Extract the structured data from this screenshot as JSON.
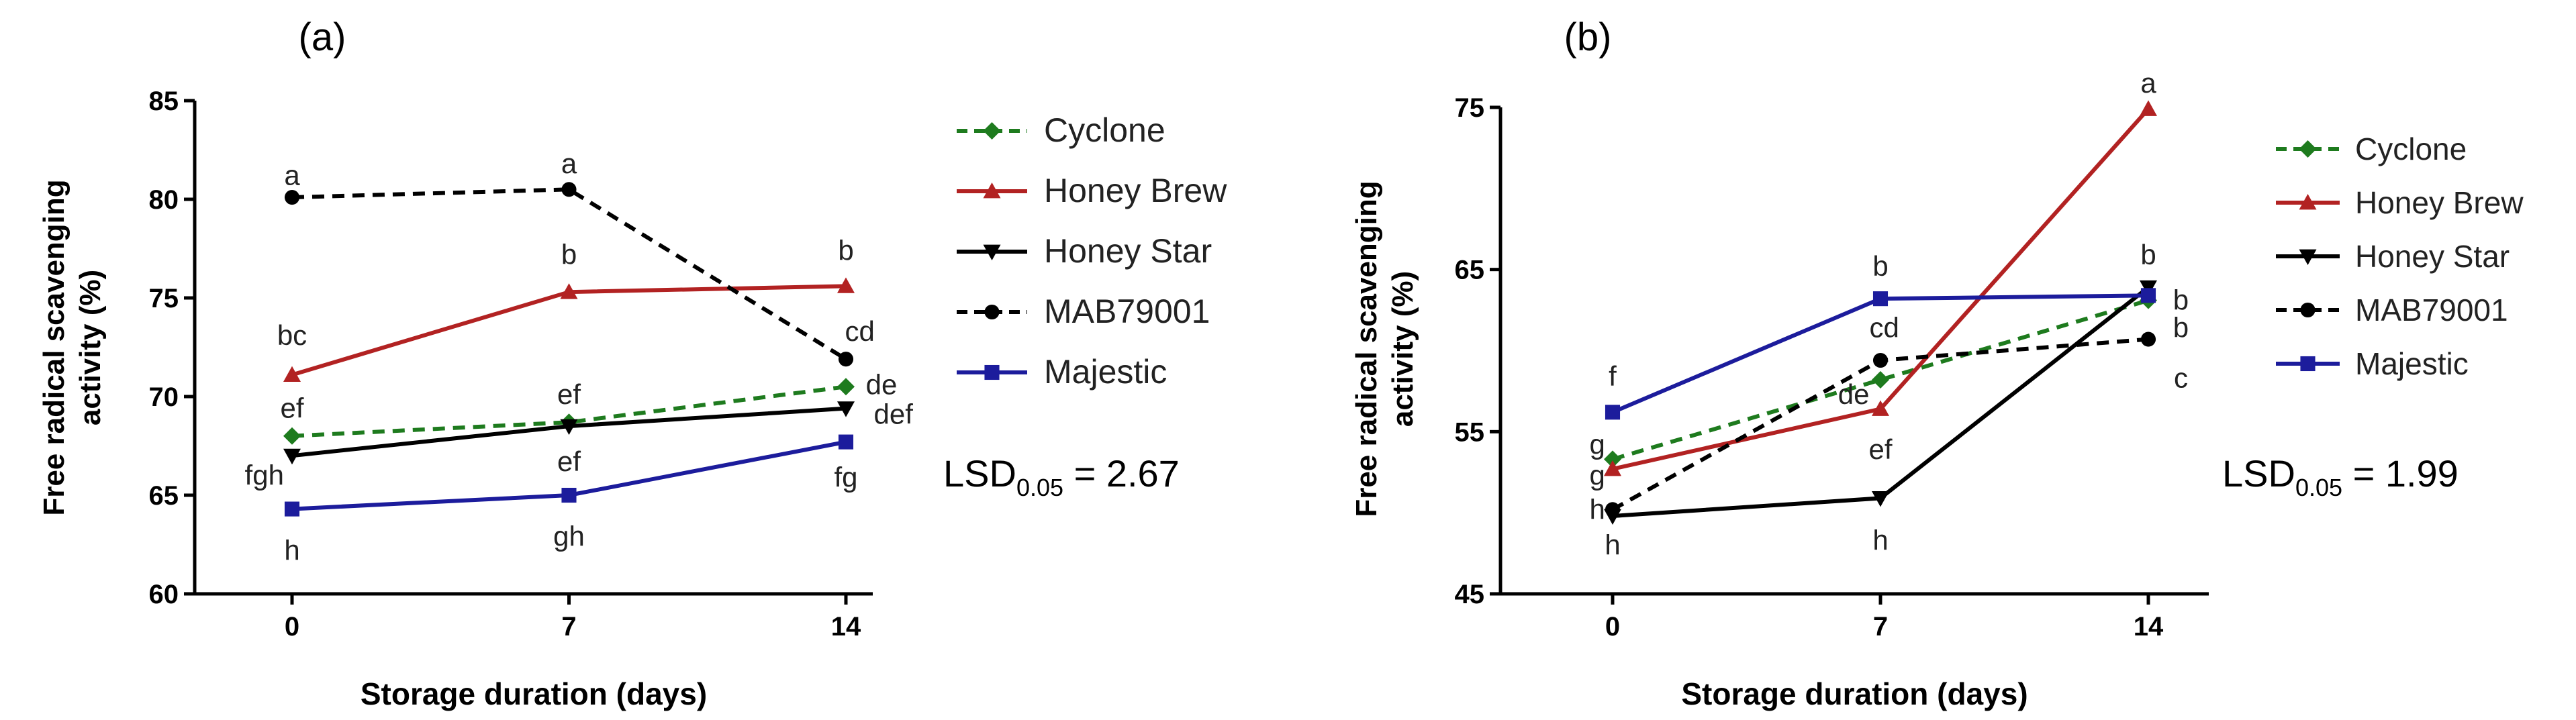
{
  "chart_data": [
    {
      "type": "line",
      "panel_label": "(a)",
      "xlabel": "Storage duration (days)",
      "ylabel": "Free radical scavenging activity (%)",
      "ylabel_lines": [
        "Free radical scavenging",
        "activity (%)"
      ],
      "x": [
        0,
        7,
        14
      ],
      "xticks": [
        "0",
        "7",
        "14"
      ],
      "ylim": [
        60,
        85
      ],
      "yticks": [
        60,
        65,
        70,
        75,
        80,
        85
      ],
      "lsd_prefix": "LSD",
      "lsd_sub": "0.05",
      "lsd_value": " = 2.67",
      "series": [
        {
          "name": "Cyclone",
          "values": [
            68.0,
            68.7,
            70.5
          ],
          "color": "#1e7b1e",
          "dash": "dash",
          "marker": "diamond"
        },
        {
          "name": "Honey Brew",
          "values": [
            71.1,
            75.3,
            75.6
          ],
          "color": "#b22222",
          "dash": "solid",
          "marker": "triangle-up"
        },
        {
          "name": "Honey Star",
          "values": [
            67.0,
            68.5,
            69.4
          ],
          "color": "#000000",
          "dash": "solid",
          "marker": "triangle-down"
        },
        {
          "name": "MAB79001",
          "values": [
            80.1,
            80.5,
            71.9
          ],
          "color": "#000000",
          "dash": "dash",
          "marker": "circle"
        },
        {
          "name": "Majestic",
          "values": [
            64.3,
            65.0,
            67.7
          ],
          "color": "#1c1c9c",
          "dash": "solid",
          "marker": "square"
        }
      ],
      "annotations": [
        {
          "text": "a",
          "x": 0,
          "y": 81.2
        },
        {
          "text": "a",
          "x": 7,
          "y": 81.8
        },
        {
          "text": "bc",
          "x": 0,
          "y": 73.1
        },
        {
          "text": "b",
          "x": 7,
          "y": 77.2
        },
        {
          "text": "b",
          "x": 14,
          "y": 77.4
        },
        {
          "text": "cd",
          "x": 14.35,
          "y": 73.3
        },
        {
          "text": "ef",
          "x": 0,
          "y": 69.4
        },
        {
          "text": "ef",
          "x": 7,
          "y": 70.1
        },
        {
          "text": "de",
          "x": 14.9,
          "y": 70.6
        },
        {
          "text": "def",
          "x": 15.2,
          "y": 69.1
        },
        {
          "text": "ef",
          "x": 7,
          "y": 66.7
        },
        {
          "text": "fgh",
          "x": -0.7,
          "y": 66.0
        },
        {
          "text": "fg",
          "x": 14,
          "y": 65.9
        },
        {
          "text": "gh",
          "x": 7,
          "y": 62.9
        },
        {
          "text": "h",
          "x": 0,
          "y": 62.2
        }
      ]
    },
    {
      "type": "line",
      "panel_label": "(b)",
      "xlabel": "Storage duration (days)",
      "ylabel": "Free radical scavenging activity (%)",
      "ylabel_lines": [
        "Free radical scavenging",
        "activity (%)"
      ],
      "x": [
        0,
        7,
        14
      ],
      "xticks": [
        "0",
        "7",
        "14"
      ],
      "ylim": [
        45,
        75
      ],
      "yticks": [
        45,
        55,
        65,
        75
      ],
      "lsd_prefix": "LSD",
      "lsd_sub": "0.05",
      "lsd_value": " = 1.99",
      "series": [
        {
          "name": "Cyclone",
          "values": [
            53.3,
            58.2,
            63.1
          ],
          "color": "#1e7b1e",
          "dash": "dash",
          "marker": "diamond"
        },
        {
          "name": "Honey Brew",
          "values": [
            52.7,
            56.4,
            74.9
          ],
          "color": "#b22222",
          "dash": "solid",
          "marker": "triangle-up"
        },
        {
          "name": "Honey Star",
          "values": [
            49.8,
            50.9,
            63.9
          ],
          "color": "#000000",
          "dash": "solid",
          "marker": "triangle-down"
        },
        {
          "name": "MAB79001",
          "values": [
            50.2,
            59.4,
            60.7
          ],
          "color": "#000000",
          "dash": "dash",
          "marker": "circle"
        },
        {
          "name": "Majestic",
          "values": [
            56.2,
            63.2,
            63.4
          ],
          "color": "#1c1c9c",
          "dash": "solid",
          "marker": "square"
        }
      ],
      "annotations": [
        {
          "text": "a",
          "x": 14,
          "y": 76.5
        },
        {
          "text": "b",
          "x": 7,
          "y": 65.2
        },
        {
          "text": "b",
          "x": 14,
          "y": 65.9
        },
        {
          "text": "b",
          "x": 14.85,
          "y": 63.1
        },
        {
          "text": "b",
          "x": 14.85,
          "y": 61.4
        },
        {
          "text": "c",
          "x": 14.85,
          "y": 58.3
        },
        {
          "text": "cd",
          "x": 7.1,
          "y": 61.4
        },
        {
          "text": "de",
          "x": 6.3,
          "y": 57.3
        },
        {
          "text": "ef",
          "x": 7,
          "y": 53.9
        },
        {
          "text": "f",
          "x": 0,
          "y": 58.4
        },
        {
          "text": "g",
          "x": -0.4,
          "y": 54.2
        },
        {
          "text": "g",
          "x": -0.4,
          "y": 52.3
        },
        {
          "text": "h",
          "x": -0.4,
          "y": 50.2
        },
        {
          "text": "h",
          "x": 0,
          "y": 48.0
        },
        {
          "text": "h",
          "x": 7,
          "y": 48.3
        }
      ]
    }
  ]
}
